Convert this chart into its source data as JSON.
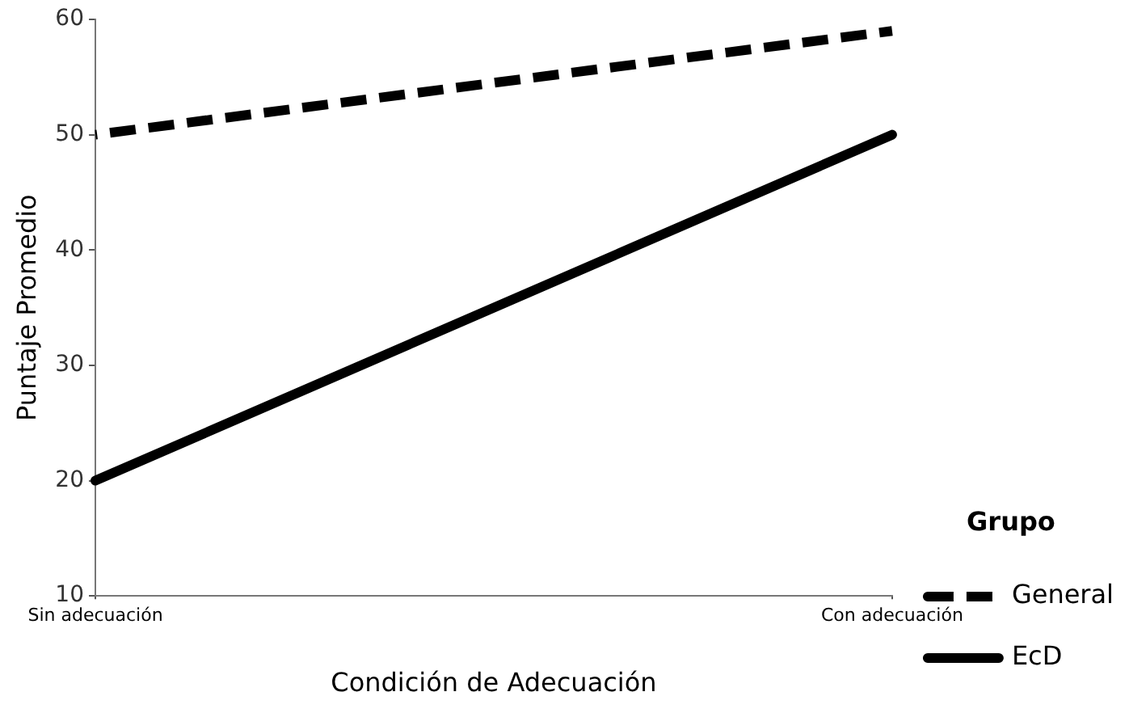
{
  "chart_data": {
    "type": "line",
    "xlabel": "Condición de Adecuación",
    "ylabel": "Puntaje Promedio",
    "legend_title": "Grupo",
    "legend": "right",
    "categories": [
      "Sin adecuación",
      "Con adecuación"
    ],
    "series": [
      {
        "name": "General",
        "color": "#000000",
        "values": [
          50,
          59
        ],
        "line_style": "dashed"
      },
      {
        "name": "EcD",
        "color": "#000000",
        "values": [
          20,
          50
        ],
        "line_style": "solid"
      }
    ],
    "ylim": [
      10,
      60
    ],
    "yticks": [
      10,
      20,
      30,
      40,
      50,
      60
    ],
    "grid": false,
    "marker": "none"
  }
}
